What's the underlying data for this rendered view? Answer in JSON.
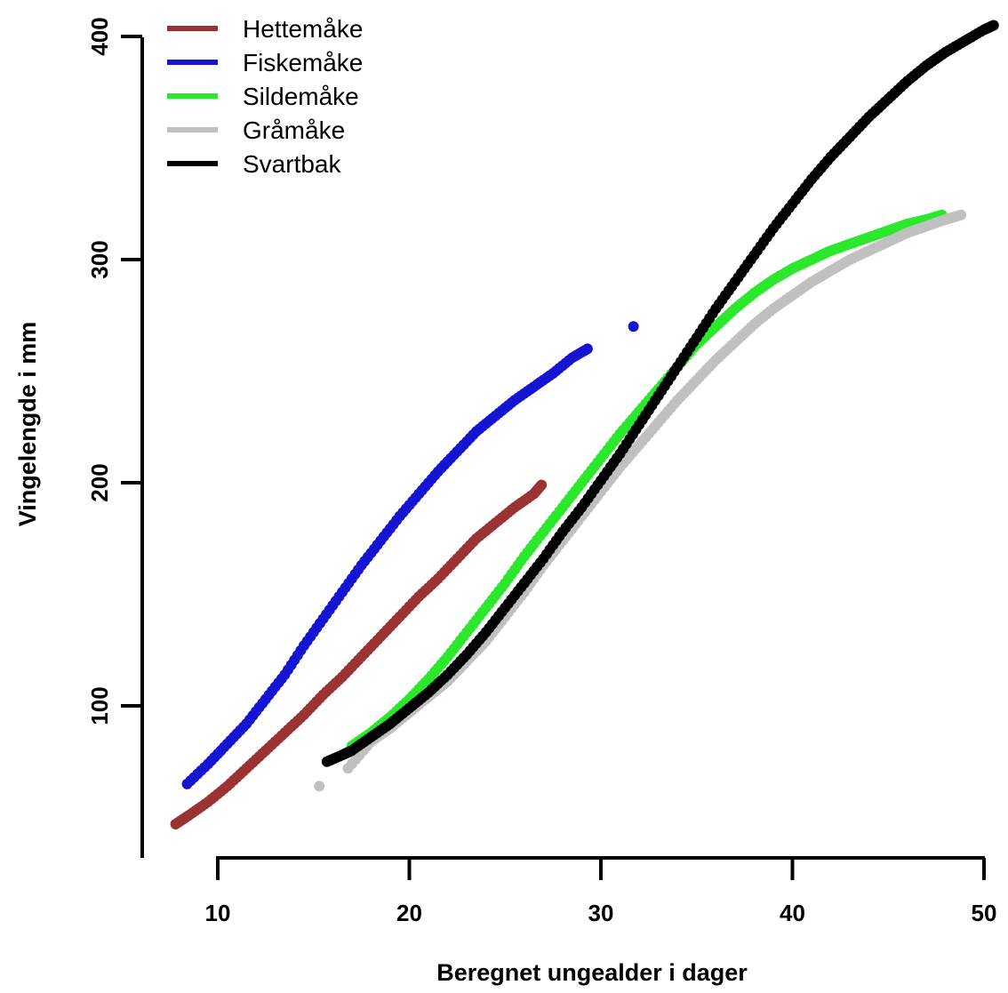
{
  "chart_data": {
    "type": "scatter",
    "title": "",
    "xlabel": "Beregnet ungealder i dager",
    "ylabel": "Vingelengde i mm",
    "xlim": [
      6.5,
      50.5
    ],
    "ylim": [
      30,
      410
    ],
    "xticks": [
      10,
      20,
      30,
      40,
      50
    ],
    "yticks": [
      100,
      200,
      300,
      400
    ],
    "grid": false,
    "legend_position": "top-left",
    "series": [
      {
        "name": "Hettemåke",
        "color": "#9b3333",
        "points": [
          [
            7.8,
            47
          ],
          [
            8.5,
            51
          ],
          [
            9.5,
            57
          ],
          [
            10.5,
            64
          ],
          [
            11.5,
            72
          ],
          [
            12.5,
            80
          ],
          [
            13.5,
            88
          ],
          [
            14.5,
            96
          ],
          [
            15.5,
            105
          ],
          [
            16.5,
            113
          ],
          [
            17.5,
            122
          ],
          [
            18.5,
            131
          ],
          [
            19.5,
            140
          ],
          [
            20.5,
            149
          ],
          [
            21.5,
            157
          ],
          [
            22.5,
            166
          ],
          [
            23.5,
            175
          ],
          [
            24.5,
            182
          ],
          [
            25.5,
            189
          ],
          [
            26.5,
            195
          ],
          [
            26.9,
            199
          ]
        ]
      },
      {
        "name": "Fiskemåke",
        "color": "#1414d2",
        "points": [
          [
            8.4,
            65
          ],
          [
            9.5,
            74
          ],
          [
            10.5,
            83
          ],
          [
            11.5,
            92
          ],
          [
            12.5,
            103
          ],
          [
            13.5,
            114
          ],
          [
            14.5,
            127
          ],
          [
            15.5,
            139
          ],
          [
            16.5,
            151
          ],
          [
            17.5,
            163
          ],
          [
            18.5,
            174
          ],
          [
            19.5,
            185
          ],
          [
            20.5,
            195
          ],
          [
            21.5,
            205
          ],
          [
            22.5,
            214
          ],
          [
            23.5,
            223
          ],
          [
            24.5,
            230
          ],
          [
            25.5,
            237
          ],
          [
            26.5,
            243
          ],
          [
            27.5,
            249
          ],
          [
            28.5,
            256
          ],
          [
            29.3,
            260
          ],
          [
            31.7,
            270
          ]
        ]
      },
      {
        "name": "Sildemåke",
        "color": "#2ce82c",
        "points": [
          [
            17,
            82
          ],
          [
            18,
            88
          ],
          [
            19,
            95
          ],
          [
            20,
            103
          ],
          [
            21,
            112
          ],
          [
            22,
            122
          ],
          [
            23,
            133
          ],
          [
            24,
            144
          ],
          [
            25,
            155
          ],
          [
            26,
            167
          ],
          [
            27,
            178
          ],
          [
            28,
            189
          ],
          [
            29,
            200
          ],
          [
            30,
            211
          ],
          [
            31,
            222
          ],
          [
            32,
            232
          ],
          [
            33,
            242
          ],
          [
            34,
            252
          ],
          [
            35,
            262
          ],
          [
            36,
            270
          ],
          [
            37,
            278
          ],
          [
            38,
            285
          ],
          [
            39,
            291
          ],
          [
            40,
            296
          ],
          [
            41,
            300
          ],
          [
            42,
            304
          ],
          [
            43,
            307
          ],
          [
            44,
            310
          ],
          [
            45,
            313
          ],
          [
            46,
            316
          ],
          [
            47,
            318
          ],
          [
            47.8,
            320
          ]
        ]
      },
      {
        "name": "Gråmåke",
        "color": "#c0c0c0",
        "points": [
          [
            15.3,
            64
          ],
          [
            16.8,
            72
          ],
          [
            18,
            84
          ],
          [
            19,
            90
          ],
          [
            20,
            97
          ],
          [
            21,
            104
          ],
          [
            22,
            111
          ],
          [
            23,
            120
          ],
          [
            24,
            129
          ],
          [
            25,
            140
          ],
          [
            26,
            151
          ],
          [
            27,
            163
          ],
          [
            28,
            174
          ],
          [
            29,
            185
          ],
          [
            30,
            196
          ],
          [
            31,
            207
          ],
          [
            32,
            217
          ],
          [
            33,
            227
          ],
          [
            34,
            237
          ],
          [
            35,
            246
          ],
          [
            36,
            255
          ],
          [
            37,
            263
          ],
          [
            38,
            271
          ],
          [
            39,
            278
          ],
          [
            40,
            284
          ],
          [
            41,
            290
          ],
          [
            42,
            295
          ],
          [
            43,
            300
          ],
          [
            44,
            304
          ],
          [
            45,
            308
          ],
          [
            46,
            312
          ],
          [
            47,
            315
          ],
          [
            48,
            318
          ],
          [
            48.8,
            320
          ]
        ]
      },
      {
        "name": "Svartbak",
        "color": "#000000",
        "points": [
          [
            15.7,
            75
          ],
          [
            16.5,
            78
          ],
          [
            17,
            80
          ],
          [
            18,
            86
          ],
          [
            19,
            92
          ],
          [
            20,
            99
          ],
          [
            21,
            106
          ],
          [
            22,
            114
          ],
          [
            23,
            123
          ],
          [
            24,
            133
          ],
          [
            25,
            144
          ],
          [
            26,
            155
          ],
          [
            27,
            166
          ],
          [
            28,
            178
          ],
          [
            29,
            189
          ],
          [
            30,
            201
          ],
          [
            31,
            213
          ],
          [
            32,
            226
          ],
          [
            33,
            239
          ],
          [
            34,
            252
          ],
          [
            35,
            265
          ],
          [
            36,
            278
          ],
          [
            37,
            290
          ],
          [
            38,
            302
          ],
          [
            39,
            314
          ],
          [
            40,
            325
          ],
          [
            41,
            336
          ],
          [
            42,
            346
          ],
          [
            43,
            355
          ],
          [
            44,
            364
          ],
          [
            45,
            372
          ],
          [
            46,
            380
          ],
          [
            47,
            387
          ],
          [
            48,
            393
          ],
          [
            49,
            398
          ],
          [
            50,
            403
          ],
          [
            50.5,
            405
          ]
        ]
      }
    ]
  }
}
